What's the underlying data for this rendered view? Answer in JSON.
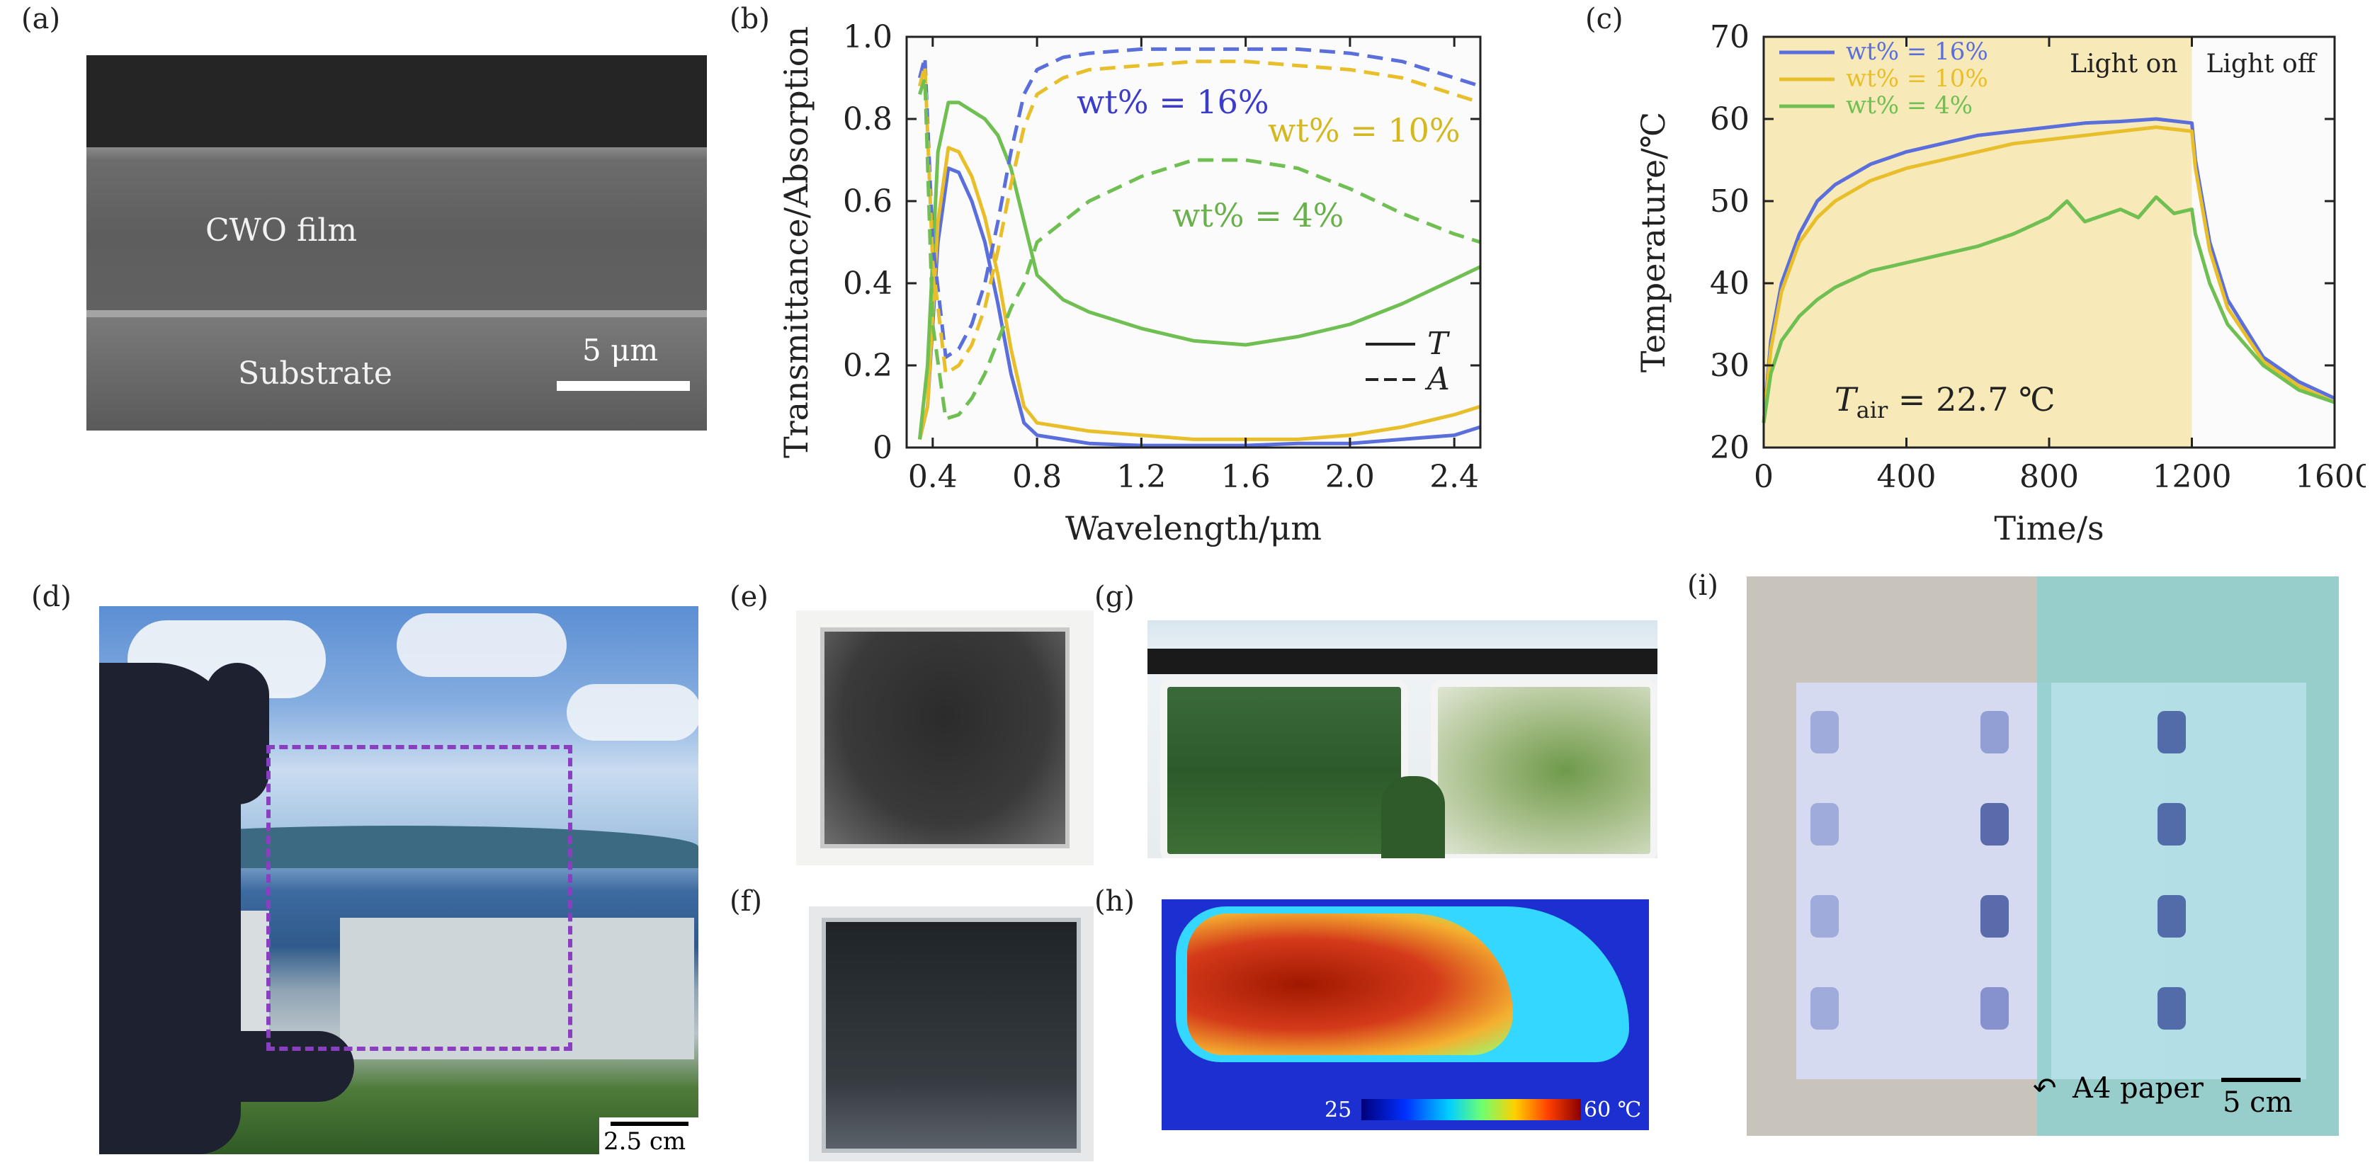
{
  "panels": {
    "a": "(a)",
    "b": "(b)",
    "c": "(c)",
    "d": "(d)",
    "e": "(e)",
    "f": "(f)",
    "g": "(g)",
    "h": "(h)",
    "i": "(i)"
  },
  "sem": {
    "film_label": "CWO film",
    "substrate_label": "Substrate",
    "scalebar_label": "5 μm"
  },
  "photo_d": {
    "scalebar_label": "2.5 cm"
  },
  "thermal": {
    "min_label": "25",
    "max_label": "60 ℃"
  },
  "photo_i": {
    "paper_label": "A4 paper",
    "scalebar_label": "5 cm"
  },
  "chart_data": [
    {
      "id": "b",
      "type": "line",
      "xlabel": "Wavelength/μm",
      "ylabel": "Transmittance/Absorption",
      "xlim": [
        0.3,
        2.5
      ],
      "ylim": [
        0,
        1.0
      ],
      "xticks": [
        0.4,
        0.8,
        1.2,
        1.6,
        2.0,
        2.4
      ],
      "xtick_labels": [
        "0.4",
        "0.8",
        "1.2",
        "1.6",
        "2.0",
        "2.4"
      ],
      "yticks": [
        0,
        0.2,
        0.4,
        0.6,
        0.8,
        1.0
      ],
      "ytick_labels": [
        "0",
        "0.2",
        "0.4",
        "0.6",
        "0.8",
        "1.0"
      ],
      "legend": [
        {
          "style": "solid",
          "label": "T"
        },
        {
          "style": "dashed",
          "label": "A"
        }
      ],
      "annotations": [
        {
          "text": "wt% = 16%",
          "color": "#3c3cc8"
        },
        {
          "text": "wt% = 10%",
          "color": "#d4b820"
        },
        {
          "text": "wt% = 4%",
          "color": "#6ab04c"
        }
      ],
      "series": [
        {
          "group": "16%",
          "kind": "T",
          "color": "#5a6fdc",
          "x": [
            0.35,
            0.38,
            0.42,
            0.46,
            0.5,
            0.55,
            0.6,
            0.65,
            0.7,
            0.75,
            0.8,
            0.9,
            1.0,
            1.2,
            1.4,
            1.6,
            1.8,
            2.0,
            2.2,
            2.4,
            2.5
          ],
          "y": [
            0.02,
            0.1,
            0.5,
            0.68,
            0.67,
            0.6,
            0.5,
            0.35,
            0.18,
            0.06,
            0.03,
            0.02,
            0.01,
            0.005,
            0.005,
            0.005,
            0.01,
            0.01,
            0.02,
            0.03,
            0.05
          ]
        },
        {
          "group": "10%",
          "kind": "T",
          "color": "#e8bf2a",
          "x": [
            0.35,
            0.38,
            0.42,
            0.46,
            0.5,
            0.55,
            0.6,
            0.65,
            0.7,
            0.75,
            0.8,
            0.9,
            1.0,
            1.2,
            1.4,
            1.6,
            1.8,
            2.0,
            2.2,
            2.4,
            2.5
          ],
          "y": [
            0.02,
            0.1,
            0.55,
            0.73,
            0.72,
            0.66,
            0.56,
            0.42,
            0.24,
            0.1,
            0.06,
            0.05,
            0.04,
            0.03,
            0.02,
            0.02,
            0.02,
            0.03,
            0.05,
            0.08,
            0.1
          ]
        },
        {
          "group": "4%",
          "kind": "T",
          "color": "#6fbf52",
          "x": [
            0.35,
            0.38,
            0.42,
            0.46,
            0.5,
            0.55,
            0.6,
            0.65,
            0.7,
            0.75,
            0.8,
            0.9,
            1.0,
            1.2,
            1.4,
            1.6,
            1.8,
            2.0,
            2.2,
            2.4,
            2.5
          ],
          "y": [
            0.02,
            0.2,
            0.72,
            0.84,
            0.84,
            0.82,
            0.8,
            0.76,
            0.68,
            0.55,
            0.42,
            0.36,
            0.33,
            0.29,
            0.26,
            0.25,
            0.27,
            0.3,
            0.35,
            0.41,
            0.44
          ]
        },
        {
          "group": "16%",
          "kind": "A",
          "color": "#5a6fdc",
          "x": [
            0.35,
            0.37,
            0.4,
            0.45,
            0.5,
            0.55,
            0.6,
            0.65,
            0.7,
            0.75,
            0.8,
            0.9,
            1.0,
            1.2,
            1.4,
            1.6,
            1.8,
            2.0,
            2.2,
            2.4,
            2.5
          ],
          "y": [
            0.9,
            0.95,
            0.5,
            0.22,
            0.24,
            0.3,
            0.4,
            0.55,
            0.72,
            0.86,
            0.92,
            0.95,
            0.96,
            0.97,
            0.97,
            0.97,
            0.97,
            0.96,
            0.94,
            0.9,
            0.88
          ]
        },
        {
          "group": "10%",
          "kind": "A",
          "color": "#e8bf2a",
          "x": [
            0.35,
            0.37,
            0.4,
            0.45,
            0.5,
            0.55,
            0.6,
            0.65,
            0.7,
            0.75,
            0.8,
            0.9,
            1.0,
            1.2,
            1.4,
            1.6,
            1.8,
            2.0,
            2.2,
            2.4,
            2.5
          ],
          "y": [
            0.88,
            0.93,
            0.45,
            0.18,
            0.2,
            0.25,
            0.34,
            0.48,
            0.64,
            0.78,
            0.86,
            0.9,
            0.92,
            0.93,
            0.94,
            0.94,
            0.93,
            0.92,
            0.9,
            0.86,
            0.84
          ]
        },
        {
          "group": "4%",
          "kind": "A",
          "color": "#6fbf52",
          "x": [
            0.35,
            0.37,
            0.4,
            0.45,
            0.5,
            0.55,
            0.6,
            0.65,
            0.7,
            0.75,
            0.8,
            0.9,
            1.0,
            1.2,
            1.4,
            1.6,
            1.8,
            2.0,
            2.2,
            2.4,
            2.5
          ],
          "y": [
            0.86,
            0.9,
            0.3,
            0.07,
            0.08,
            0.12,
            0.18,
            0.26,
            0.34,
            0.4,
            0.5,
            0.55,
            0.6,
            0.66,
            0.7,
            0.7,
            0.68,
            0.63,
            0.57,
            0.52,
            0.5
          ]
        }
      ]
    },
    {
      "id": "c",
      "type": "line",
      "xlabel": "Time/s",
      "ylabel": "Temperature/℃",
      "xlim": [
        0,
        1600
      ],
      "ylim": [
        20,
        70
      ],
      "xticks": [
        0,
        400,
        800,
        1200,
        1600
      ],
      "xtick_labels": [
        "0",
        "400",
        "800",
        "1200",
        "1600"
      ],
      "yticks": [
        20,
        30,
        40,
        50,
        60,
        70
      ],
      "ytick_labels": [
        "20",
        "30",
        "40",
        "50",
        "60",
        "70"
      ],
      "shaded_region": {
        "x0": 0,
        "x1": 1200,
        "color": "#f7e9b8"
      },
      "region_labels": [
        "Light on",
        "Light off"
      ],
      "annotation": {
        "text_main": "T",
        "text_sub": "air",
        "text_rest": " = 22.7 ℃"
      },
      "legend_position": "top-left",
      "series": [
        {
          "name": "wt% = 16%",
          "color": "#5a6fdc",
          "x": [
            0,
            20,
            50,
            100,
            150,
            200,
            300,
            400,
            500,
            600,
            700,
            800,
            900,
            1000,
            1100,
            1200,
            1210,
            1250,
            1300,
            1400,
            1500,
            1600
          ],
          "y": [
            23,
            33,
            40,
            46,
            50,
            52,
            54.5,
            56,
            57,
            58,
            58.5,
            59,
            59.5,
            59.7,
            60,
            59.5,
            55,
            45,
            38,
            31,
            28,
            26
          ]
        },
        {
          "name": "wt% = 10%",
          "color": "#e8bf2a",
          "x": [
            0,
            20,
            50,
            100,
            150,
            200,
            300,
            400,
            500,
            600,
            700,
            800,
            900,
            1000,
            1100,
            1200,
            1210,
            1250,
            1300,
            1400,
            1500,
            1600
          ],
          "y": [
            23,
            32,
            39,
            45,
            48,
            50,
            52.5,
            54,
            55,
            56,
            57,
            57.5,
            58,
            58.5,
            59,
            58.5,
            54,
            44,
            37,
            30.5,
            27.5,
            25.5
          ]
        },
        {
          "name": "wt% = 4%",
          "color": "#6fbf52",
          "x": [
            0,
            20,
            50,
            100,
            150,
            200,
            300,
            400,
            500,
            600,
            700,
            750,
            800,
            850,
            900,
            1000,
            1050,
            1100,
            1150,
            1200,
            1210,
            1250,
            1300,
            1400,
            1500,
            1600
          ],
          "y": [
            23,
            29,
            33,
            36,
            38,
            39.5,
            41.5,
            42.5,
            43.5,
            44.5,
            46,
            47,
            48,
            50,
            47.5,
            49,
            48,
            50.5,
            48.5,
            49,
            46,
            40,
            35,
            30,
            27,
            25.5
          ]
        }
      ]
    }
  ]
}
